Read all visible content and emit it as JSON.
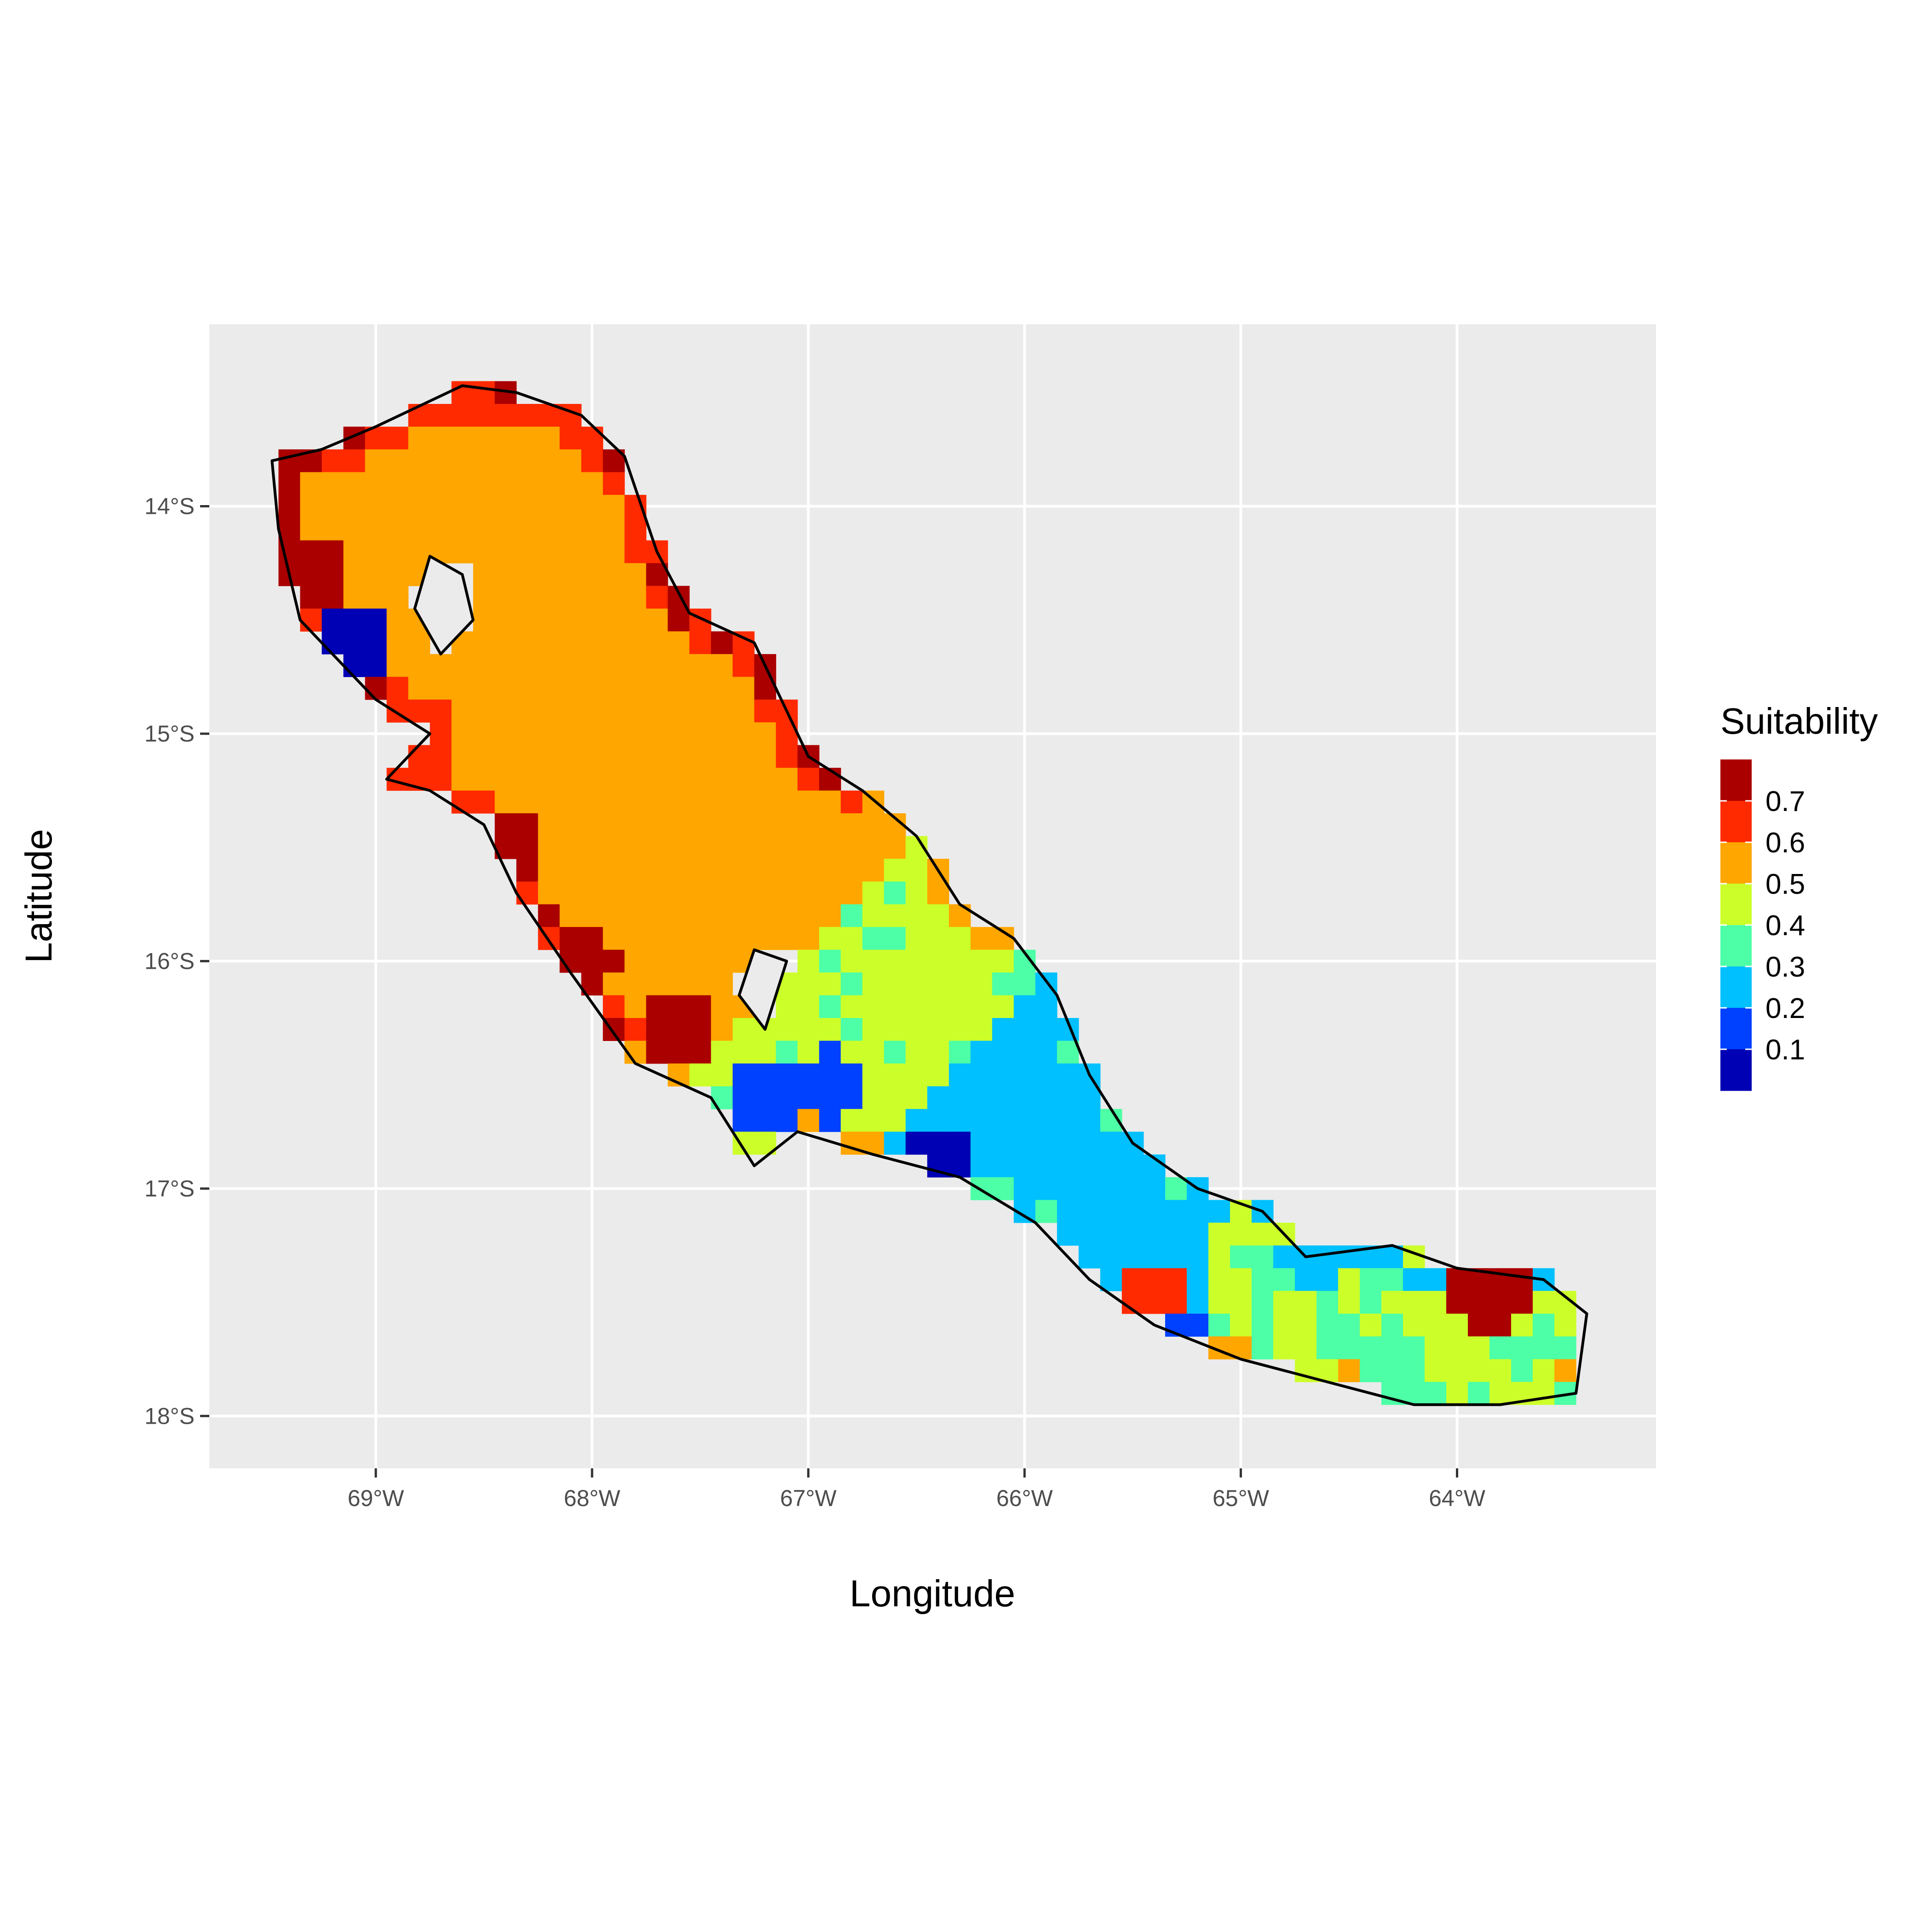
{
  "chart_data": {
    "type": "heatmap",
    "xlabel": "Longitude",
    "ylabel": "Latitude",
    "x_range": [
      -69.77,
      -63.08
    ],
    "y_range": [
      -18.23,
      -13.2
    ],
    "x_ticks": [
      {
        "value": -69,
        "label": "69°W"
      },
      {
        "value": -68,
        "label": "68°W"
      },
      {
        "value": -67,
        "label": "67°W"
      },
      {
        "value": -66,
        "label": "66°W"
      },
      {
        "value": -65,
        "label": "65°W"
      },
      {
        "value": -64,
        "label": "64°W"
      }
    ],
    "y_ticks": [
      {
        "value": -14,
        "label": "14°S"
      },
      {
        "value": -15,
        "label": "15°S"
      },
      {
        "value": -16,
        "label": "16°S"
      },
      {
        "value": -17,
        "label": "17°S"
      },
      {
        "value": -18,
        "label": "18°S"
      }
    ],
    "grid": true,
    "legend": {
      "title": "Suitability",
      "position": "right",
      "bins": [
        {
          "value": 0.05,
          "color": "#0000b4"
        },
        {
          "value": 0.15,
          "color": "#0040ff"
        },
        {
          "value": 0.25,
          "color": "#00c0ff"
        },
        {
          "value": 0.35,
          "color": "#4dffa6"
        },
        {
          "value": 0.45,
          "color": "#ccff2a"
        },
        {
          "value": 0.55,
          "color": "#ffa600"
        },
        {
          "value": 0.65,
          "color": "#ff2a00"
        },
        {
          "value": 0.75,
          "color": "#aa0000"
        }
      ],
      "labels": [
        "0.1",
        "0.2",
        "0.3",
        "0.4",
        "0.5",
        "0.6",
        "0.7"
      ]
    },
    "zone_values": {
      "coast": 0.52,
      "inland": 0.42,
      "ne_edge": 0.28,
      "south_edge": 0.12,
      "east_end": 0.4
    },
    "hotspots": [
      {
        "lon": -69.3,
        "lat": -14.3,
        "value": 0.72
      },
      {
        "lon": -68.4,
        "lat": -15.5,
        "value": 0.72
      },
      {
        "lon": -68.05,
        "lat": -16.0,
        "value": 0.73
      },
      {
        "lon": -67.6,
        "lat": -16.3,
        "value": 0.74
      },
      {
        "lon": -63.85,
        "lat": -17.45,
        "value": 0.72
      },
      {
        "lon": -65.4,
        "lat": -17.5,
        "value": 0.63
      },
      {
        "lon": -67.2,
        "lat": -16.6,
        "value": 0.12
      },
      {
        "lon": -66.4,
        "lat": -16.9,
        "value": 0.08
      },
      {
        "lon": -69.1,
        "lat": -14.6,
        "value": 0.08
      },
      {
        "lon": -65.3,
        "lat": -17.7,
        "value": 0.1
      },
      {
        "lon": -66.9,
        "lat": -16.55,
        "value": 0.14
      }
    ],
    "outline_lonlat": [
      [
        -68.6,
        -13.47
      ],
      [
        -68.35,
        -13.5
      ],
      [
        -68.05,
        -13.6
      ],
      [
        -67.85,
        -13.78
      ],
      [
        -67.7,
        -14.2
      ],
      [
        -67.55,
        -14.47
      ],
      [
        -67.25,
        -14.6
      ],
      [
        -67.0,
        -15.1
      ],
      [
        -66.75,
        -15.25
      ],
      [
        -66.5,
        -15.45
      ],
      [
        -66.3,
        -15.75
      ],
      [
        -66.05,
        -15.9
      ],
      [
        -65.85,
        -16.15
      ],
      [
        -65.7,
        -16.5
      ],
      [
        -65.5,
        -16.8
      ],
      [
        -65.2,
        -17.0
      ],
      [
        -64.9,
        -17.1
      ],
      [
        -64.7,
        -17.3
      ],
      [
        -64.3,
        -17.25
      ],
      [
        -64.0,
        -17.35
      ],
      [
        -63.6,
        -17.4
      ],
      [
        -63.4,
        -17.55
      ],
      [
        -63.45,
        -17.9
      ],
      [
        -63.8,
        -17.95
      ],
      [
        -64.2,
        -17.95
      ],
      [
        -64.6,
        -17.85
      ],
      [
        -65.0,
        -17.75
      ],
      [
        -65.4,
        -17.6
      ],
      [
        -65.7,
        -17.4
      ],
      [
        -65.95,
        -17.15
      ],
      [
        -66.3,
        -16.95
      ],
      [
        -66.7,
        -16.85
      ],
      [
        -67.05,
        -16.75
      ],
      [
        -67.25,
        -16.9
      ],
      [
        -67.45,
        -16.6
      ],
      [
        -67.8,
        -16.45
      ],
      [
        -68.1,
        -16.05
      ],
      [
        -68.35,
        -15.7
      ],
      [
        -68.5,
        -15.4
      ],
      [
        -68.75,
        -15.25
      ],
      [
        -68.95,
        -15.2
      ],
      [
        -68.75,
        -15.0
      ],
      [
        -69.0,
        -14.85
      ],
      [
        -69.35,
        -14.5
      ],
      [
        -69.45,
        -14.1
      ],
      [
        -69.48,
        -13.8
      ],
      [
        -69.25,
        -13.75
      ],
      [
        -69.0,
        -13.65
      ]
    ],
    "lake1_lonlat": [
      [
        -68.75,
        -14.22
      ],
      [
        -68.6,
        -14.3
      ],
      [
        -68.55,
        -14.5
      ],
      [
        -68.7,
        -14.65
      ],
      [
        -68.82,
        -14.45
      ]
    ],
    "lake2_lonlat": [
      [
        -67.25,
        -15.95
      ],
      [
        -67.1,
        -16.0
      ],
      [
        -67.2,
        -16.3
      ],
      [
        -67.32,
        -16.15
      ]
    ]
  }
}
